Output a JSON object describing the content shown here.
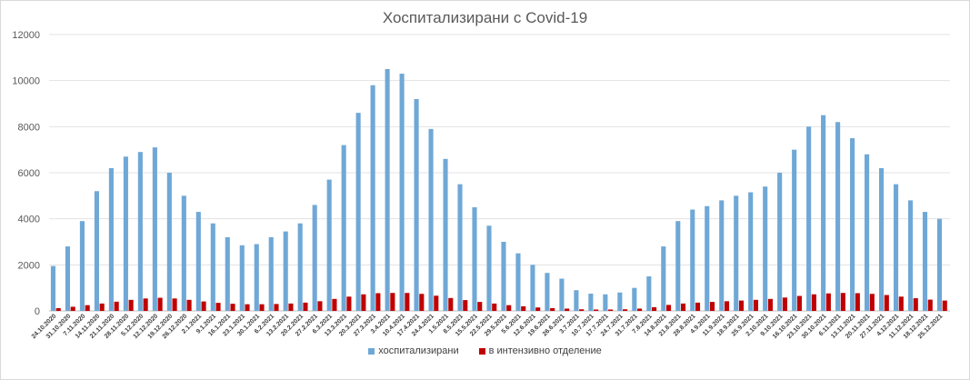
{
  "chart_data": {
    "type": "bar",
    "title": "Хоспитализирани с Covid-19",
    "xlabel": "",
    "ylabel": "",
    "ylim": [
      0,
      12000
    ],
    "yticks": [
      0,
      2000,
      4000,
      6000,
      8000,
      10000,
      12000
    ],
    "grid": true,
    "legend_position": "bottom",
    "categories": [
      "24.10.2020",
      "31.10.2020",
      "7.11.2020",
      "14.11.2020",
      "21.11.2020",
      "28.11.2020",
      "5.12.2020",
      "12.12.2020",
      "19.12.2020",
      "26.12.2020",
      "2.1.2021",
      "9.1.2021",
      "16.1.2021",
      "23.1.2021",
      "30.1.2021",
      "6.2.2021",
      "13.2.2021",
      "20.2.2021",
      "27.2.2021",
      "6.3.2021",
      "13.3.2021",
      "20.3.2021",
      "27.3.2021",
      "3.4.2021",
      "10.4.2021",
      "17.4.2021",
      "24.4.2021",
      "1.5.2021",
      "8.5.2021",
      "15.5.2021",
      "22.5.2021",
      "29.5.2021",
      "5.6.2021",
      "12.6.2021",
      "19.6.2021",
      "26.6.2021",
      "3.7.2021",
      "10.7.2021",
      "17.7.2021",
      "24.7.2021",
      "31.7.2021",
      "7.8.2021",
      "14.8.2021",
      "21.8.2021",
      "28.8.2021",
      "4.9.2021",
      "11.9.2021",
      "18.9.2021",
      "25.9.2021",
      "2.10.2021",
      "9.10.2021",
      "16.10.2021",
      "23.10.2021",
      "30.10.2021",
      "6.11.2021",
      "13.11.2021",
      "20.11.2021",
      "27.11.2021",
      "4.12.2021",
      "11.12.2021",
      "18.12.2021",
      "25.12.2021"
    ],
    "series": [
      {
        "name": "хоспитализирани",
        "color": "#6fa8d6",
        "values": [
          1950,
          2800,
          3900,
          5200,
          6200,
          6700,
          6900,
          7100,
          6000,
          5000,
          4300,
          3800,
          3200,
          2850,
          2900,
          3200,
          3450,
          3800,
          4600,
          5700,
          7200,
          8600,
          9800,
          10500,
          10300,
          9200,
          7900,
          6600,
          5500,
          4500,
          3700,
          3000,
          2500,
          2000,
          1650,
          1400,
          900,
          750,
          720,
          800,
          1000,
          1500,
          2800,
          3900,
          4400,
          4550,
          4800,
          5000,
          5150,
          5400,
          6000,
          7000,
          8000,
          8500,
          8200,
          7500,
          6800,
          6200,
          5500,
          4800,
          4300,
          4000
        ]
      },
      {
        "name": "в интензивно отделение",
        "color": "#c00000",
        "values": [
          120,
          180,
          250,
          320,
          400,
          480,
          540,
          570,
          540,
          480,
          410,
          350,
          310,
          290,
          290,
          300,
          320,
          360,
          420,
          520,
          620,
          720,
          770,
          780,
          780,
          740,
          660,
          560,
          470,
          390,
          320,
          250,
          200,
          150,
          120,
          100,
          70,
          60,
          60,
          70,
          100,
          160,
          260,
          320,
          360,
          390,
          420,
          450,
          480,
          520,
          580,
          650,
          720,
          760,
          780,
          770,
          740,
          690,
          620,
          550,
          490,
          450
        ]
      }
    ]
  }
}
